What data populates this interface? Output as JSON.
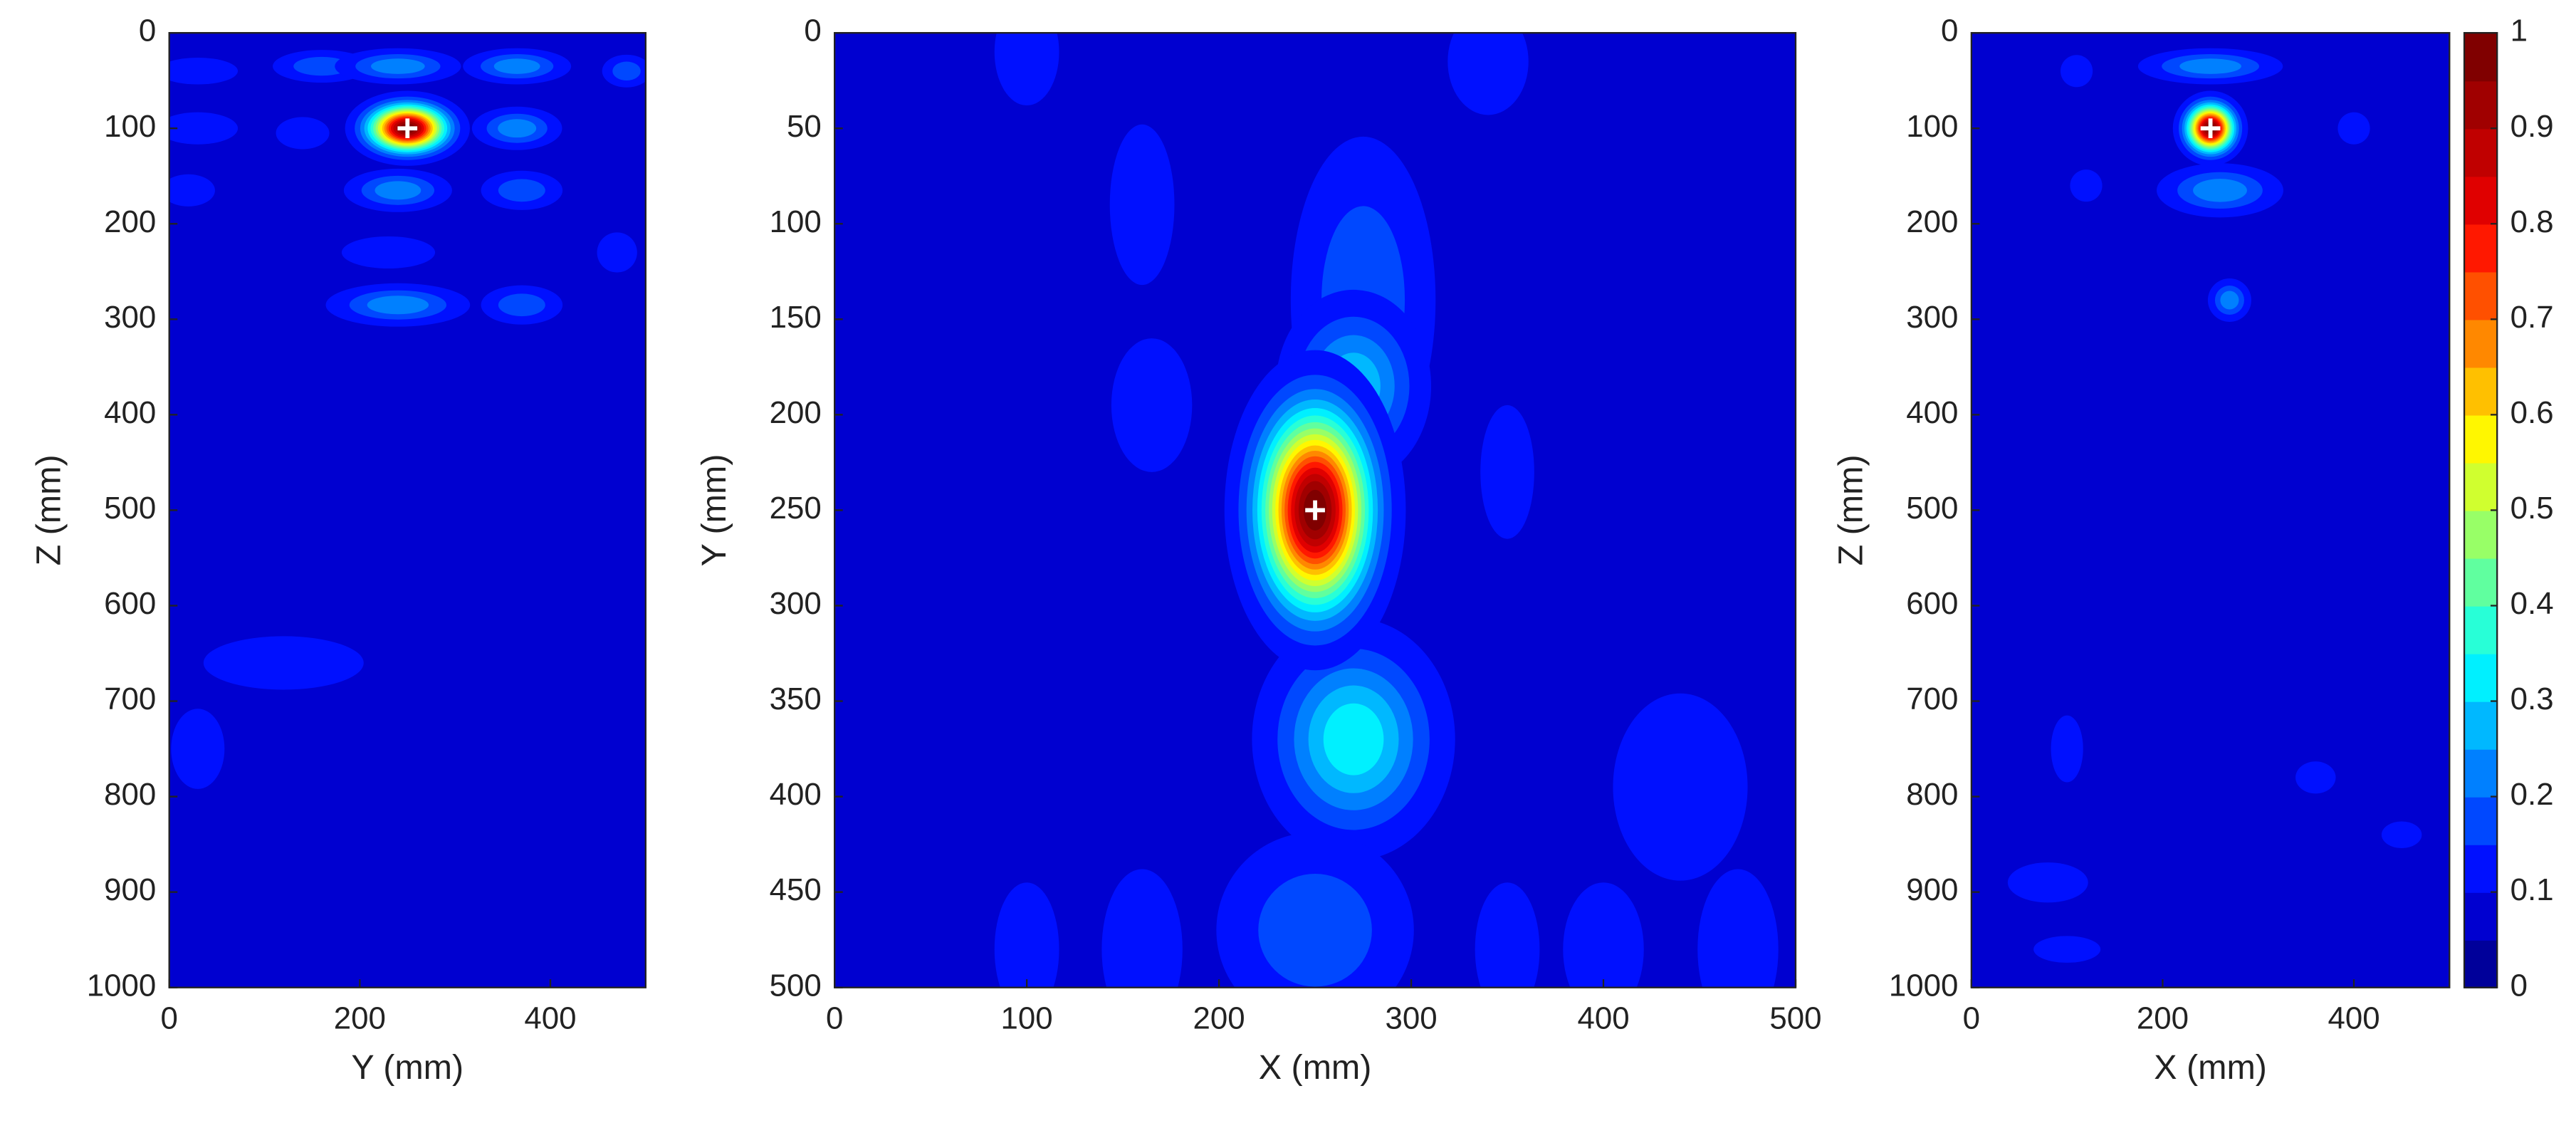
{
  "chart_data": [
    {
      "type": "contour",
      "xlabel": "Y (mm)",
      "ylabel": "Z (mm)",
      "xlim": [
        0,
        500
      ],
      "ylim": [
        1000,
        0
      ],
      "xticks": [
        0,
        200,
        400
      ],
      "yticks": [
        0,
        100,
        200,
        300,
        400,
        500,
        600,
        700,
        800,
        900,
        1000
      ],
      "floor": 0.07,
      "marker": {
        "x": 250,
        "y": 100
      },
      "blobs": [
        {
          "x": 250,
          "y": 100,
          "sx": 25,
          "sy": 15,
          "peak": 1
        },
        {
          "x": 160,
          "y": 35,
          "sx": 30,
          "sy": 10,
          "peak": 0.2
        },
        {
          "x": 240,
          "y": 35,
          "sx": 35,
          "sy": 10,
          "peak": 0.25
        },
        {
          "x": 365,
          "y": 35,
          "sx": 30,
          "sy": 10,
          "peak": 0.25
        },
        {
          "x": 480,
          "y": 40,
          "sx": 15,
          "sy": 10,
          "peak": 0.2
        },
        {
          "x": 30,
          "y": 40,
          "sx": 30,
          "sy": 10,
          "peak": 0.15
        },
        {
          "x": 365,
          "y": 100,
          "sx": 25,
          "sy": 12,
          "peak": 0.25
        },
        {
          "x": 30,
          "y": 100,
          "sx": 30,
          "sy": 12,
          "peak": 0.15
        },
        {
          "x": 140,
          "y": 105,
          "sx": 20,
          "sy": 12,
          "peak": 0.15
        },
        {
          "x": 240,
          "y": 165,
          "sx": 30,
          "sy": 12,
          "peak": 0.25
        },
        {
          "x": 370,
          "y": 165,
          "sx": 25,
          "sy": 12,
          "peak": 0.2
        },
        {
          "x": 20,
          "y": 165,
          "sx": 20,
          "sy": 12,
          "peak": 0.15
        },
        {
          "x": 230,
          "y": 230,
          "sx": 35,
          "sy": 12,
          "peak": 0.15
        },
        {
          "x": 470,
          "y": 230,
          "sx": 15,
          "sy": 15,
          "peak": 0.15
        },
        {
          "x": 240,
          "y": 285,
          "sx": 40,
          "sy": 12,
          "peak": 0.25
        },
        {
          "x": 370,
          "y": 285,
          "sx": 25,
          "sy": 12,
          "peak": 0.2
        },
        {
          "x": 120,
          "y": 660,
          "sx": 60,
          "sy": 20,
          "peak": 0.15
        },
        {
          "x": 30,
          "y": 750,
          "sx": 20,
          "sy": 30,
          "peak": 0.15
        }
      ]
    },
    {
      "type": "contour",
      "xlabel": "X (mm)",
      "ylabel": "Y (mm)",
      "xlim": [
        0,
        500
      ],
      "ylim": [
        500,
        0
      ],
      "xticks": [
        0,
        100,
        200,
        300,
        400,
        500
      ],
      "yticks": [
        0,
        50,
        100,
        150,
        200,
        250,
        300,
        350,
        400,
        450,
        500
      ],
      "floor": 0.07,
      "marker": {
        "x": 250,
        "y": 250
      },
      "blobs": [
        {
          "x": 275,
          "y": 140,
          "sx": 22,
          "sy": 50,
          "peak": 0.2
        },
        {
          "x": 270,
          "y": 370,
          "sx": 25,
          "sy": 30,
          "peak": 0.35
        },
        {
          "x": 250,
          "y": 470,
          "sx": 30,
          "sy": 30,
          "peak": 0.2
        },
        {
          "x": 270,
          "y": 185,
          "sx": 20,
          "sy": 25,
          "peak": 0.3
        },
        {
          "x": 250,
          "y": 250,
          "sx": 18,
          "sy": 32,
          "peak": 1
        },
        {
          "x": 160,
          "y": 90,
          "sx": 12,
          "sy": 30,
          "peak": 0.15
        },
        {
          "x": 165,
          "y": 195,
          "sx": 15,
          "sy": 25,
          "peak": 0.15
        },
        {
          "x": 350,
          "y": 230,
          "sx": 10,
          "sy": 25,
          "peak": 0.15
        },
        {
          "x": 440,
          "y": 395,
          "sx": 25,
          "sy": 35,
          "peak": 0.15
        },
        {
          "x": 100,
          "y": 480,
          "sx": 12,
          "sy": 25,
          "peak": 0.15
        },
        {
          "x": 160,
          "y": 480,
          "sx": 15,
          "sy": 30,
          "peak": 0.15
        },
        {
          "x": 350,
          "y": 480,
          "sx": 12,
          "sy": 25,
          "peak": 0.15
        },
        {
          "x": 400,
          "y": 480,
          "sx": 15,
          "sy": 25,
          "peak": 0.15
        },
        {
          "x": 470,
          "y": 480,
          "sx": 15,
          "sy": 30,
          "peak": 0.15
        },
        {
          "x": 100,
          "y": 10,
          "sx": 12,
          "sy": 20,
          "peak": 0.15
        },
        {
          "x": 340,
          "y": 15,
          "sx": 15,
          "sy": 20,
          "peak": 0.15
        }
      ]
    },
    {
      "type": "contour",
      "xlabel": "X (mm)",
      "ylabel": "Z (mm)",
      "xlim": [
        0,
        500
      ],
      "ylim": [
        1000,
        0
      ],
      "xticks": [
        0,
        200,
        400
      ],
      "yticks": [
        0,
        100,
        200,
        300,
        400,
        500,
        600,
        700,
        800,
        900,
        1000
      ],
      "floor": 0.07,
      "marker": {
        "x": 250,
        "y": 100
      },
      "blobs": [
        {
          "x": 250,
          "y": 35,
          "sx": 40,
          "sy": 10,
          "peak": 0.25
        },
        {
          "x": 260,
          "y": 165,
          "sx": 35,
          "sy": 15,
          "peak": 0.25
        },
        {
          "x": 250,
          "y": 100,
          "sx": 15,
          "sy": 15,
          "peak": 1
        },
        {
          "x": 270,
          "y": 280,
          "sx": 12,
          "sy": 12,
          "peak": 0.25
        },
        {
          "x": 110,
          "y": 40,
          "sx": 12,
          "sy": 12,
          "peak": 0.15
        },
        {
          "x": 120,
          "y": 160,
          "sx": 12,
          "sy": 12,
          "peak": 0.15
        },
        {
          "x": 400,
          "y": 100,
          "sx": 12,
          "sy": 12,
          "peak": 0.15
        },
        {
          "x": 80,
          "y": 890,
          "sx": 30,
          "sy": 15,
          "peak": 0.15
        },
        {
          "x": 100,
          "y": 960,
          "sx": 25,
          "sy": 10,
          "peak": 0.15
        },
        {
          "x": 100,
          "y": 750,
          "sx": 12,
          "sy": 25,
          "peak": 0.15
        },
        {
          "x": 360,
          "y": 780,
          "sx": 15,
          "sy": 12,
          "peak": 0.15
        },
        {
          "x": 450,
          "y": 840,
          "sx": 15,
          "sy": 10,
          "peak": 0.15
        }
      ],
      "clim": [
        0,
        1
      ],
      "cticks": [
        0,
        0.1,
        0.2,
        0.3,
        0.4,
        0.5,
        0.6,
        0.7,
        0.8,
        0.9,
        1
      ],
      "colormap": [
        "#00009a",
        "#0000d0",
        "#0010ff",
        "#0048ff",
        "#0080ff",
        "#00b8ff",
        "#00f0ff",
        "#28ffd7",
        "#60ff9f",
        "#98ff67",
        "#d0ff2f",
        "#fff700",
        "#ffc000",
        "#ff8800",
        "#ff5000",
        "#ff1800",
        "#e00000",
        "#c00000",
        "#a00000",
        "#800000"
      ]
    }
  ]
}
